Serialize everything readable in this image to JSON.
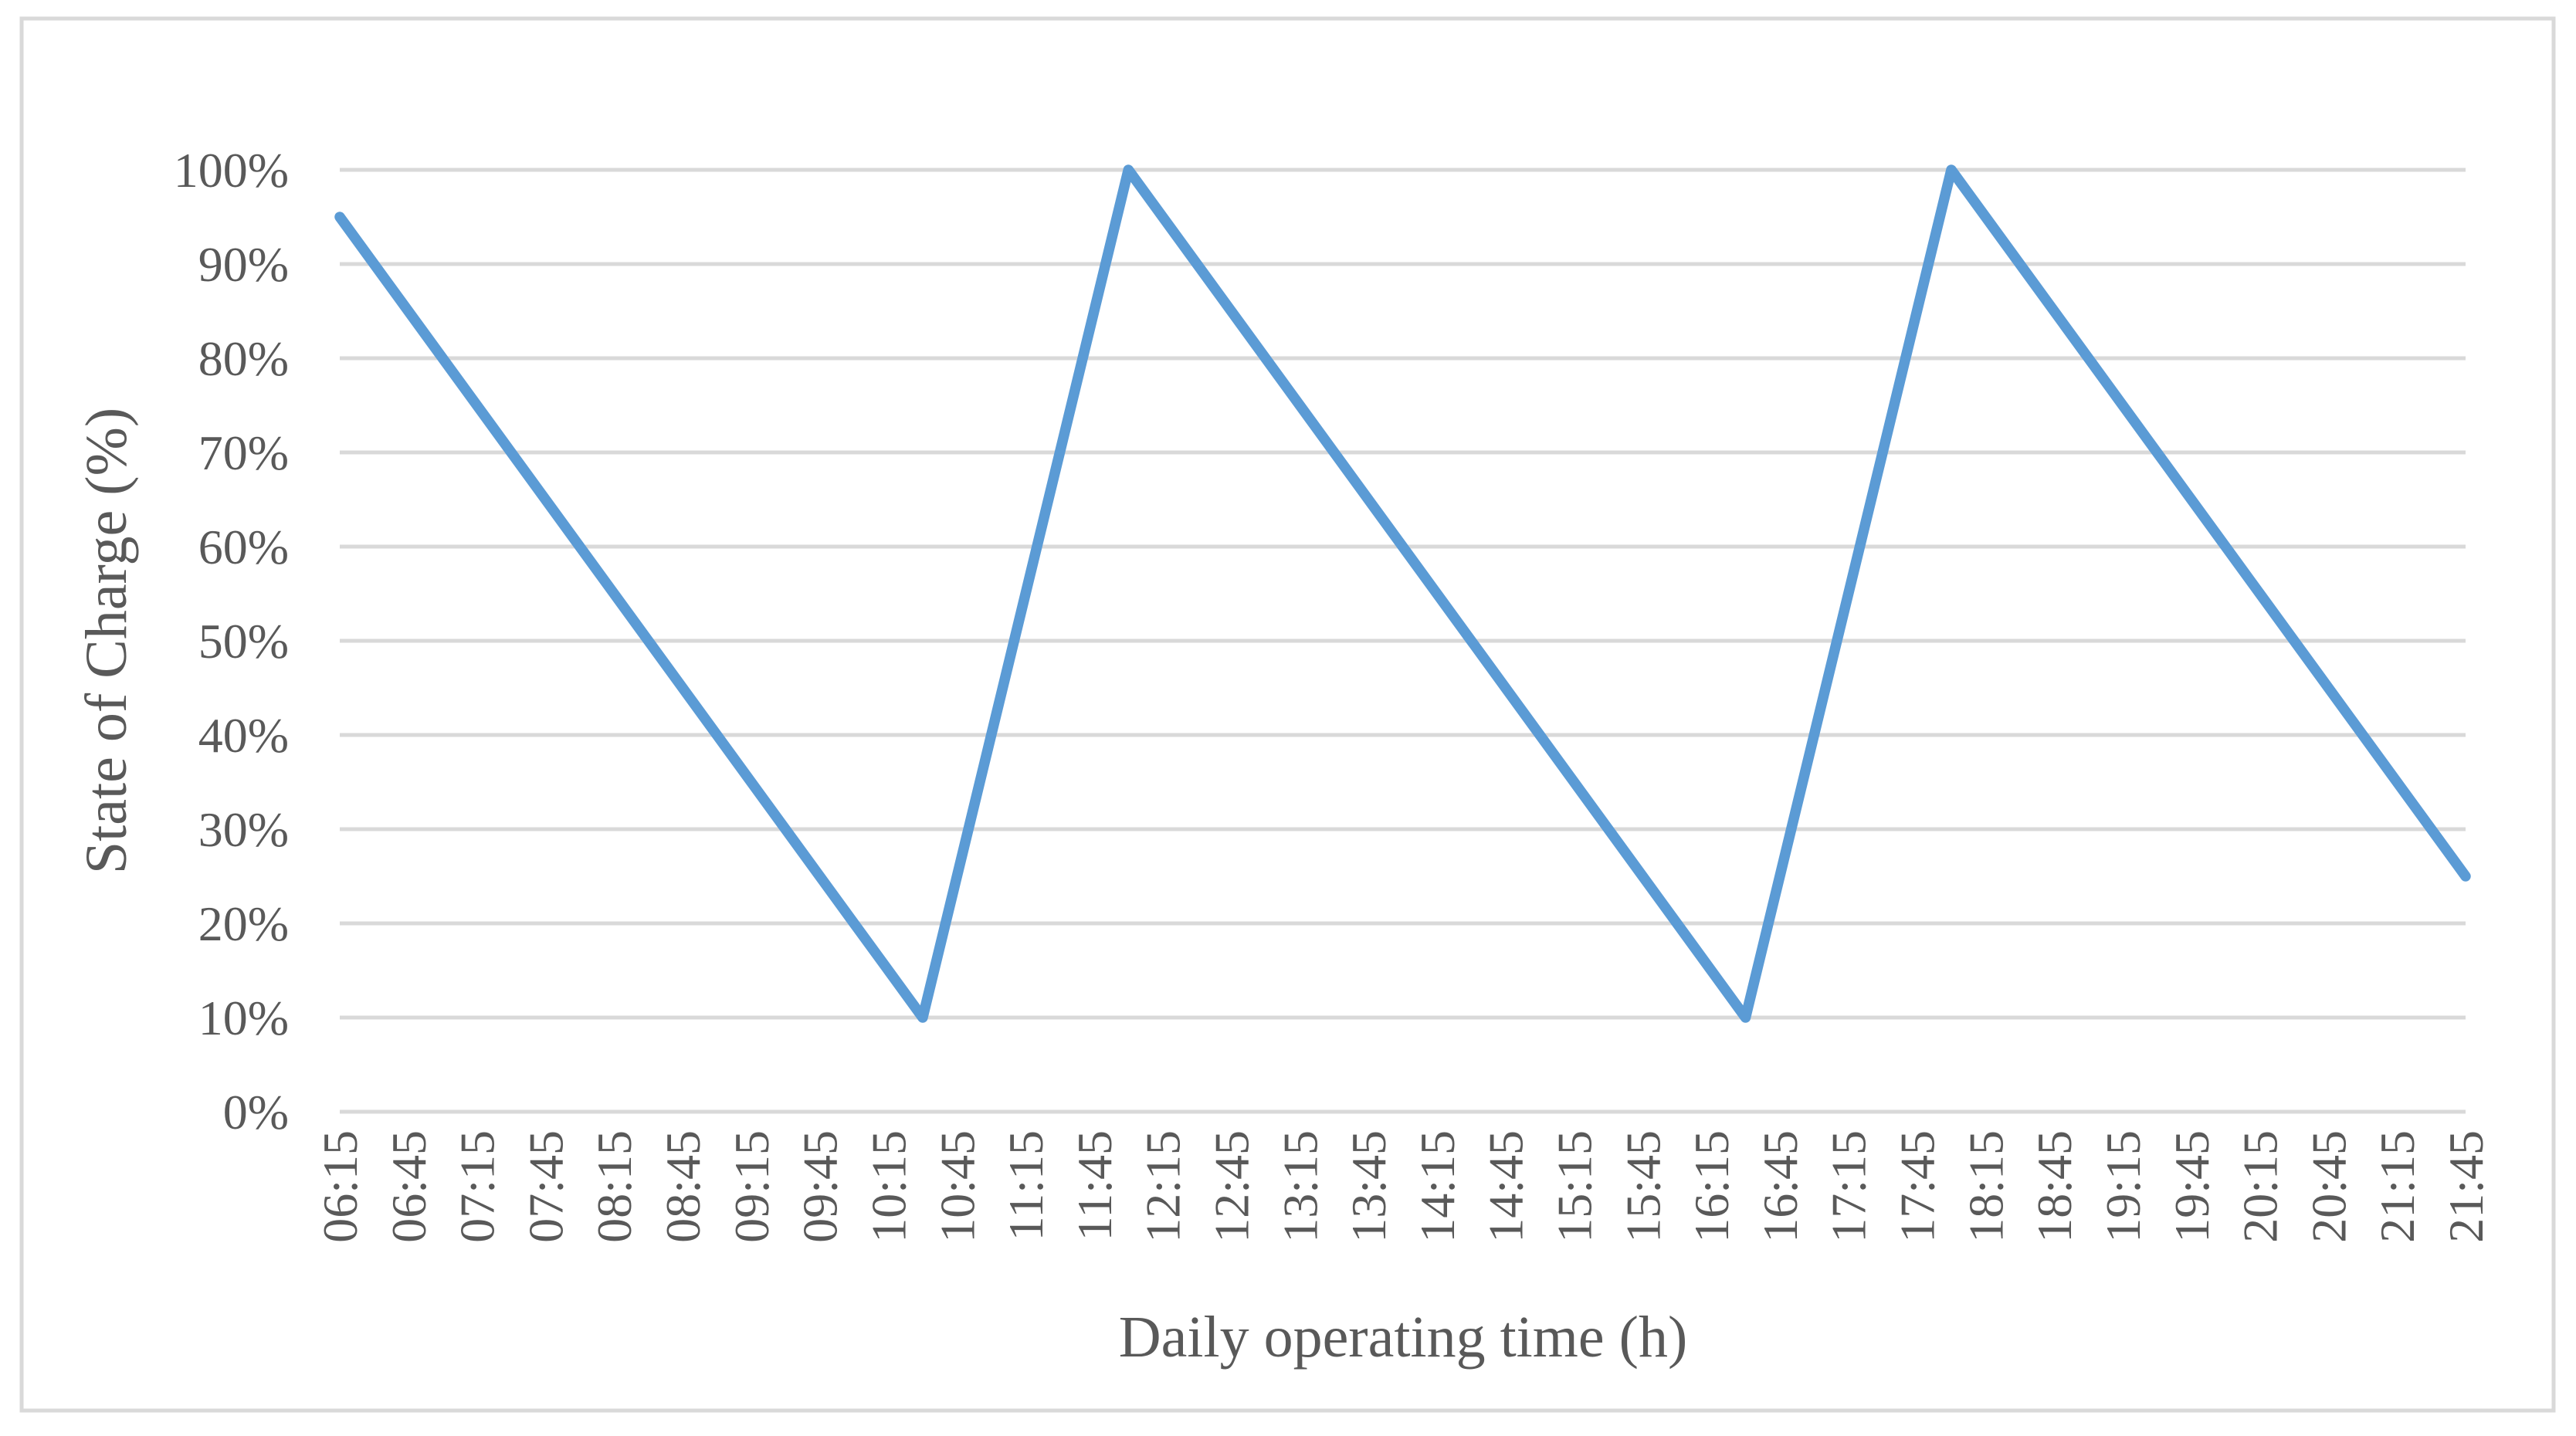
{
  "figure": {
    "background": "#FFFFFF",
    "border_color": "#D9D9D9"
  },
  "chart_data": {
    "type": "line",
    "title": "",
    "xlabel": "Daily operating time (h)",
    "ylabel": "State of Charge (%)",
    "x": [
      "06:15",
      "06:30",
      "06:45",
      "07:00",
      "07:15",
      "07:30",
      "07:45",
      "08:00",
      "08:15",
      "08:30",
      "08:45",
      "09:00",
      "09:15",
      "09:30",
      "09:45",
      "10:00",
      "10:15",
      "10:30",
      "10:45",
      "11:00",
      "11:15",
      "11:30",
      "11:45",
      "12:00",
      "12:15",
      "12:30",
      "12:45",
      "13:00",
      "13:15",
      "13:30",
      "13:45",
      "14:00",
      "14:15",
      "14:30",
      "14:45",
      "15:00",
      "15:15",
      "15:30",
      "15:45",
      "16:00",
      "16:15",
      "16:30",
      "16:45",
      "17:00",
      "17:15",
      "17:30",
      "17:45",
      "18:00",
      "18:15",
      "18:30",
      "18:45",
      "19:00",
      "19:15",
      "19:30",
      "19:45",
      "20:00",
      "20:15",
      "20:30",
      "20:45",
      "21:00",
      "21:15",
      "21:30",
      "21:45"
    ],
    "series": [
      {
        "name": "State of Charge",
        "values": [
          95,
          90,
          85,
          80,
          75,
          70,
          65,
          60,
          55,
          50,
          45,
          40,
          35,
          30,
          25,
          20,
          15,
          10,
          25,
          40,
          55,
          70,
          85,
          100,
          95,
          90,
          85,
          80,
          75,
          70,
          65,
          60,
          55,
          50,
          45,
          40,
          35,
          30,
          25,
          20,
          15,
          10,
          25,
          40,
          55,
          70,
          85,
          100,
          95,
          90,
          85,
          80,
          75,
          70,
          65,
          60,
          55,
          50,
          45,
          40,
          35,
          30,
          25
        ]
      }
    ],
    "x_tick_labels": [
      "06:15",
      "06:45",
      "07:15",
      "07:45",
      "08:15",
      "08:45",
      "09:15",
      "09:45",
      "10:15",
      "10:45",
      "11:15",
      "11:45",
      "12:15",
      "12:45",
      "13:15",
      "13:45",
      "14:15",
      "14:45",
      "15:15",
      "15:45",
      "16:15",
      "16:45",
      "17:15",
      "17:45",
      "18:15",
      "18:45",
      "19:15",
      "19:45",
      "20:15",
      "20:45",
      "21:15",
      "21:45"
    ],
    "y_tick_labels": [
      "0%",
      "10%",
      "20%",
      "30%",
      "40%",
      "50%",
      "60%",
      "70%",
      "80%",
      "90%",
      "100%"
    ],
    "ylim": [
      0,
      100
    ],
    "grid": "horizontal",
    "legend": "none",
    "line_color": "#5B9BD5",
    "grid_color": "#D9D9D9",
    "text_color": "#595959"
  }
}
